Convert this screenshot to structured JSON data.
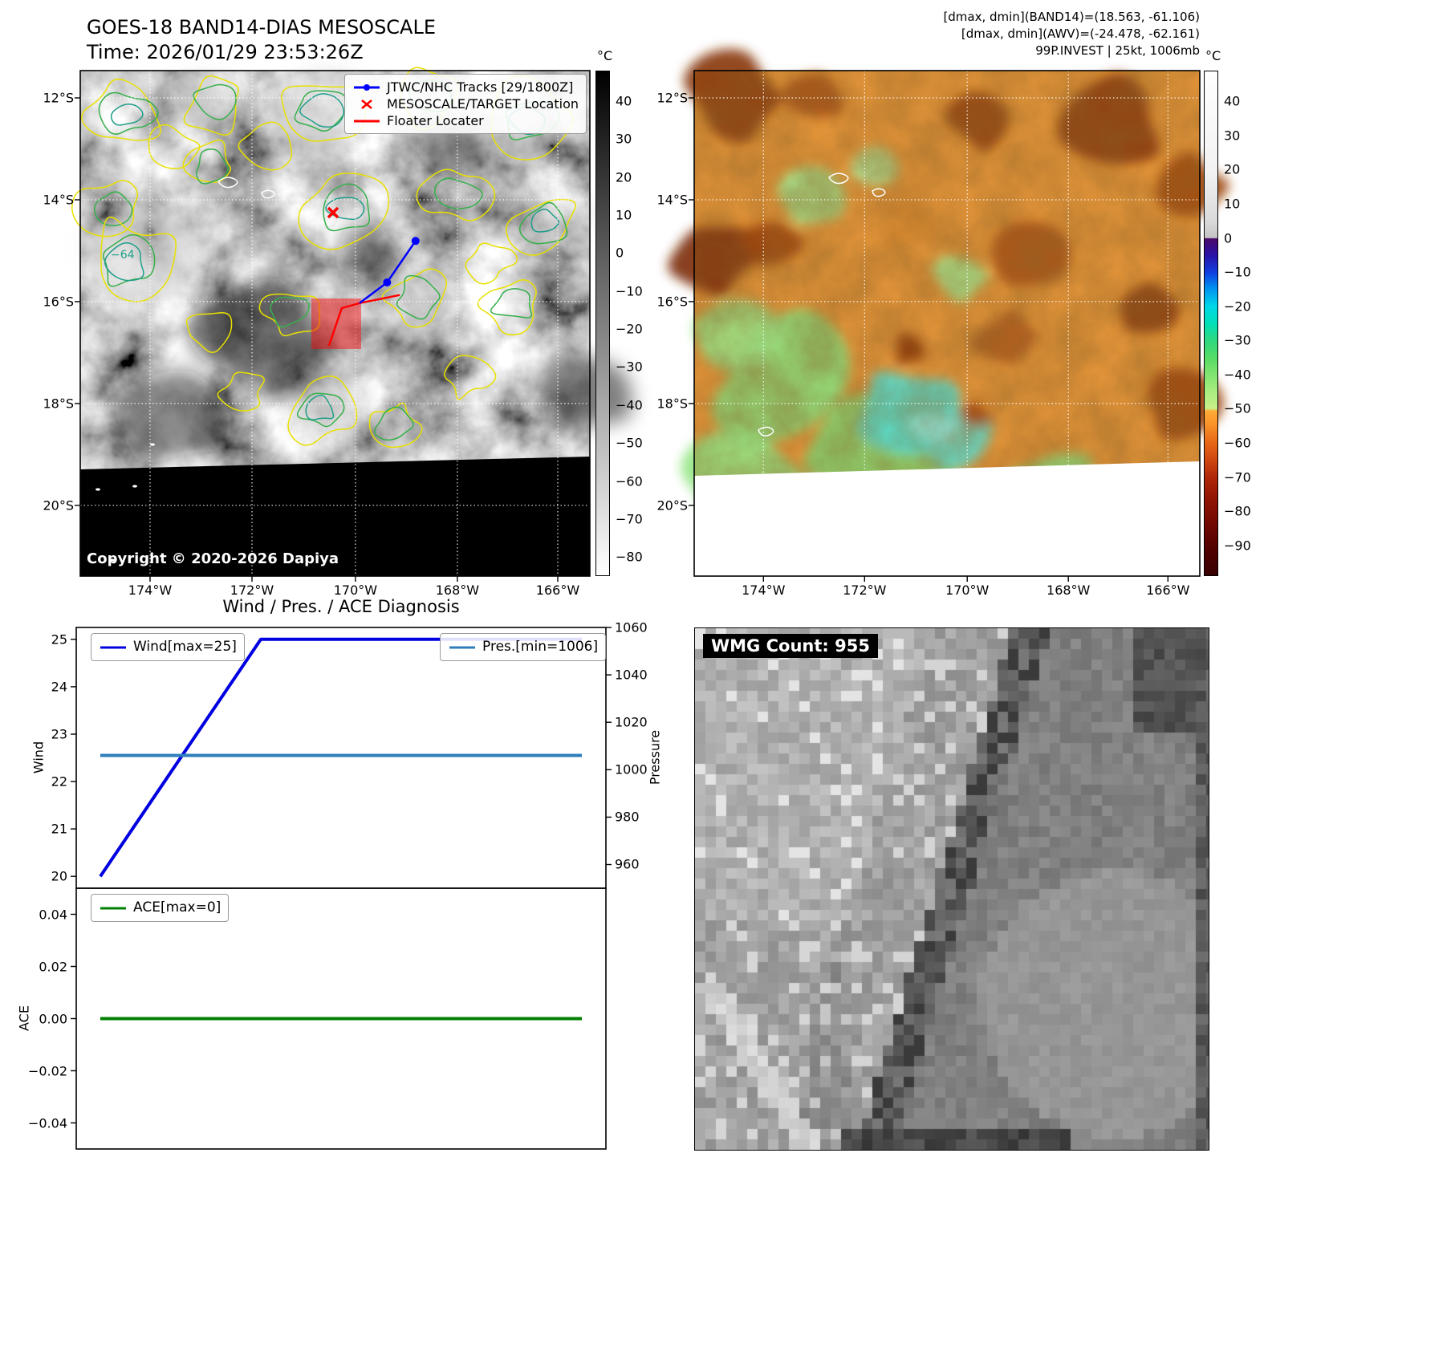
{
  "panel_band14": {
    "title": "GOES-18 BAND14-DIAS MESOSCALE",
    "subtitle": "Time: 2026/01/29 23:53:26Z",
    "copyright": "Copyright © 2020-2026 Dapiya",
    "contour_label": "−64",
    "legend": [
      {
        "label": "JTWC/NHC Tracks [29/1800Z]",
        "marker": "line-dots",
        "color": "#0000ff"
      },
      {
        "label": "MESOSCALE/TARGET Location",
        "marker": "x",
        "color": "#ff0000"
      },
      {
        "label": "Floater Locater",
        "marker": "line",
        "color": "#ff0000"
      }
    ],
    "x_ticks": [
      "174°W",
      "172°W",
      "170°W",
      "168°W",
      "166°W"
    ],
    "y_ticks": [
      "12°S",
      "14°S",
      "16°S",
      "18°S",
      "20°S"
    ],
    "colorbar": {
      "unit": "°C",
      "ticks": [
        "40",
        "30",
        "20",
        "10",
        "0",
        "−10",
        "−20",
        "−30",
        "−40",
        "−50",
        "−60",
        "−70",
        "−80"
      ]
    },
    "track": {
      "jtwc_points": [
        [
          0.658,
          0.337
        ],
        [
          0.602,
          0.419
        ],
        [
          0.548,
          0.46
        ]
      ],
      "floater_points": [
        [
          0.627,
          0.444
        ],
        [
          0.548,
          0.46
        ],
        [
          0.513,
          0.47
        ],
        [
          0.488,
          0.544
        ]
      ],
      "target_marker": [
        0.496,
        0.281
      ],
      "mesoscale_box": [
        0.4535,
        0.4508,
        0.0976,
        0.1
      ]
    }
  },
  "panel_awv": {
    "annotations": [
      "[dmax, dmin](BAND14)=(18.563, -61.106)",
      "[dmax, dmin](AWV)=(-24.478, -62.161)",
      "99P.INVEST | 25kt, 1006mb"
    ],
    "x_ticks": [
      "174°W",
      "172°W",
      "170°W",
      "168°W",
      "166°W"
    ],
    "y_ticks": [
      "12°S",
      "14°S",
      "16°S",
      "18°S",
      "20°S"
    ],
    "colorbar": {
      "unit": "°C",
      "ticks": [
        "40",
        "30",
        "20",
        "10",
        "0",
        "−10",
        "−20",
        "−30",
        "−40",
        "−50",
        "−60",
        "−70",
        "−80",
        "−90"
      ]
    }
  },
  "diagnosis": {
    "title": "Wind / Pres. / ACE Diagnosis"
  },
  "panel_wmg": {
    "label": "WMG Count: 955"
  },
  "chart_data": [
    {
      "type": "line",
      "title": "Wind / Pres. / ACE Diagnosis",
      "x": [
        0,
        1,
        2,
        3
      ],
      "series": [
        {
          "name": "Wind[max=25]",
          "axis": "left",
          "color": "#0000e0",
          "values": [
            20,
            25,
            25,
            25
          ]
        },
        {
          "name": "Pres.[min=1006]",
          "axis": "right",
          "color": "#2e7ebc",
          "values": [
            1006,
            1006,
            1006,
            1006
          ]
        }
      ],
      "ylabel_left": "Wind",
      "ylabel_right": "Pressure",
      "ylim_left": [
        19.75,
        25.25
      ],
      "ylim_right": [
        950,
        1060
      ],
      "yticks_left": {
        "values": [
          20,
          21,
          22,
          23,
          24,
          25
        ],
        "labels": [
          "20",
          "21",
          "22",
          "23",
          "24",
          "25"
        ]
      },
      "yticks_right": {
        "values": [
          960,
          980,
          1000,
          1020,
          1040,
          1060
        ],
        "labels": [
          "960",
          "980",
          "1000",
          "1020",
          "1040",
          "1060"
        ]
      },
      "legend": [
        "Wind[max=25]",
        "Pres.[min=1006]"
      ],
      "grid": false
    },
    {
      "type": "line",
      "x": [
        0,
        1,
        2,
        3
      ],
      "series": [
        {
          "name": "ACE[max=0]",
          "axis": "left",
          "color": "#008000",
          "values": [
            0,
            0,
            0,
            0
          ]
        }
      ],
      "ylabel_left": "ACE",
      "ylim_left": [
        -0.05,
        0.05
      ],
      "yticks_left": {
        "values": [
          -0.04,
          -0.02,
          0,
          0.02,
          0.04
        ],
        "labels": [
          "−0.04",
          "−0.02",
          "0.00",
          "0.02",
          "0.04"
        ]
      },
      "legend": [
        "ACE[max=0]"
      ],
      "grid": false
    }
  ]
}
